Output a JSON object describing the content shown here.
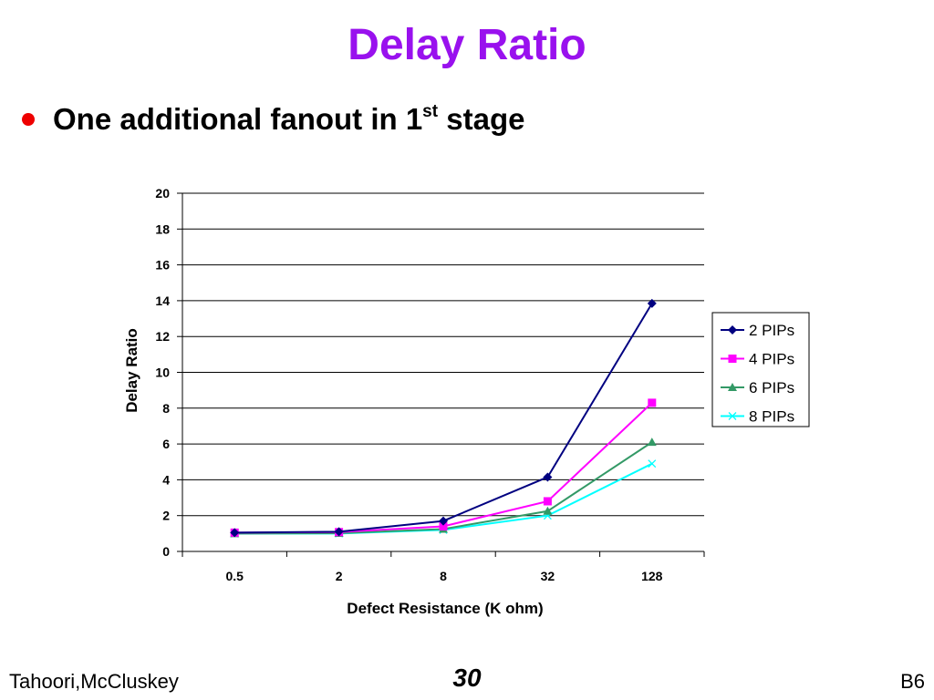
{
  "slide": {
    "title": "Delay Ratio",
    "bullet_text": "One additional fanout in 1",
    "bullet_superscript": "st",
    "bullet_suffix": " stage",
    "bullet_color": "#ee0000",
    "title_color": "#9911ee"
  },
  "footer": {
    "left": "Tahoori,McCluskey",
    "center": "30",
    "right": "B6"
  },
  "chart_data": {
    "type": "line",
    "xlabel": "Defect Resistance (K ohm)",
    "ylabel": "Delay Ratio",
    "categories": [
      "0.5",
      "2",
      "8",
      "32",
      "128"
    ],
    "ylim": [
      0,
      20
    ],
    "yticks": [
      0,
      2,
      4,
      6,
      8,
      10,
      12,
      14,
      16,
      18,
      20
    ],
    "grid": true,
    "legend_position": "right",
    "series": [
      {
        "name": "2 PIPs",
        "values": [
          1.05,
          1.1,
          1.7,
          4.15,
          13.85
        ],
        "color": "#000080",
        "marker": "diamond"
      },
      {
        "name": "4 PIPs",
        "values": [
          1.05,
          1.08,
          1.4,
          2.8,
          8.3
        ],
        "color": "#ff00ff",
        "marker": "square"
      },
      {
        "name": "6 PIPs",
        "values": [
          1.0,
          1.02,
          1.25,
          2.25,
          6.1
        ],
        "color": "#339966",
        "marker": "triangle"
      },
      {
        "name": "8 PIPs",
        "values": [
          1.0,
          1.0,
          1.2,
          2.0,
          4.9
        ],
        "color": "#00ffff",
        "marker": "x"
      }
    ]
  }
}
